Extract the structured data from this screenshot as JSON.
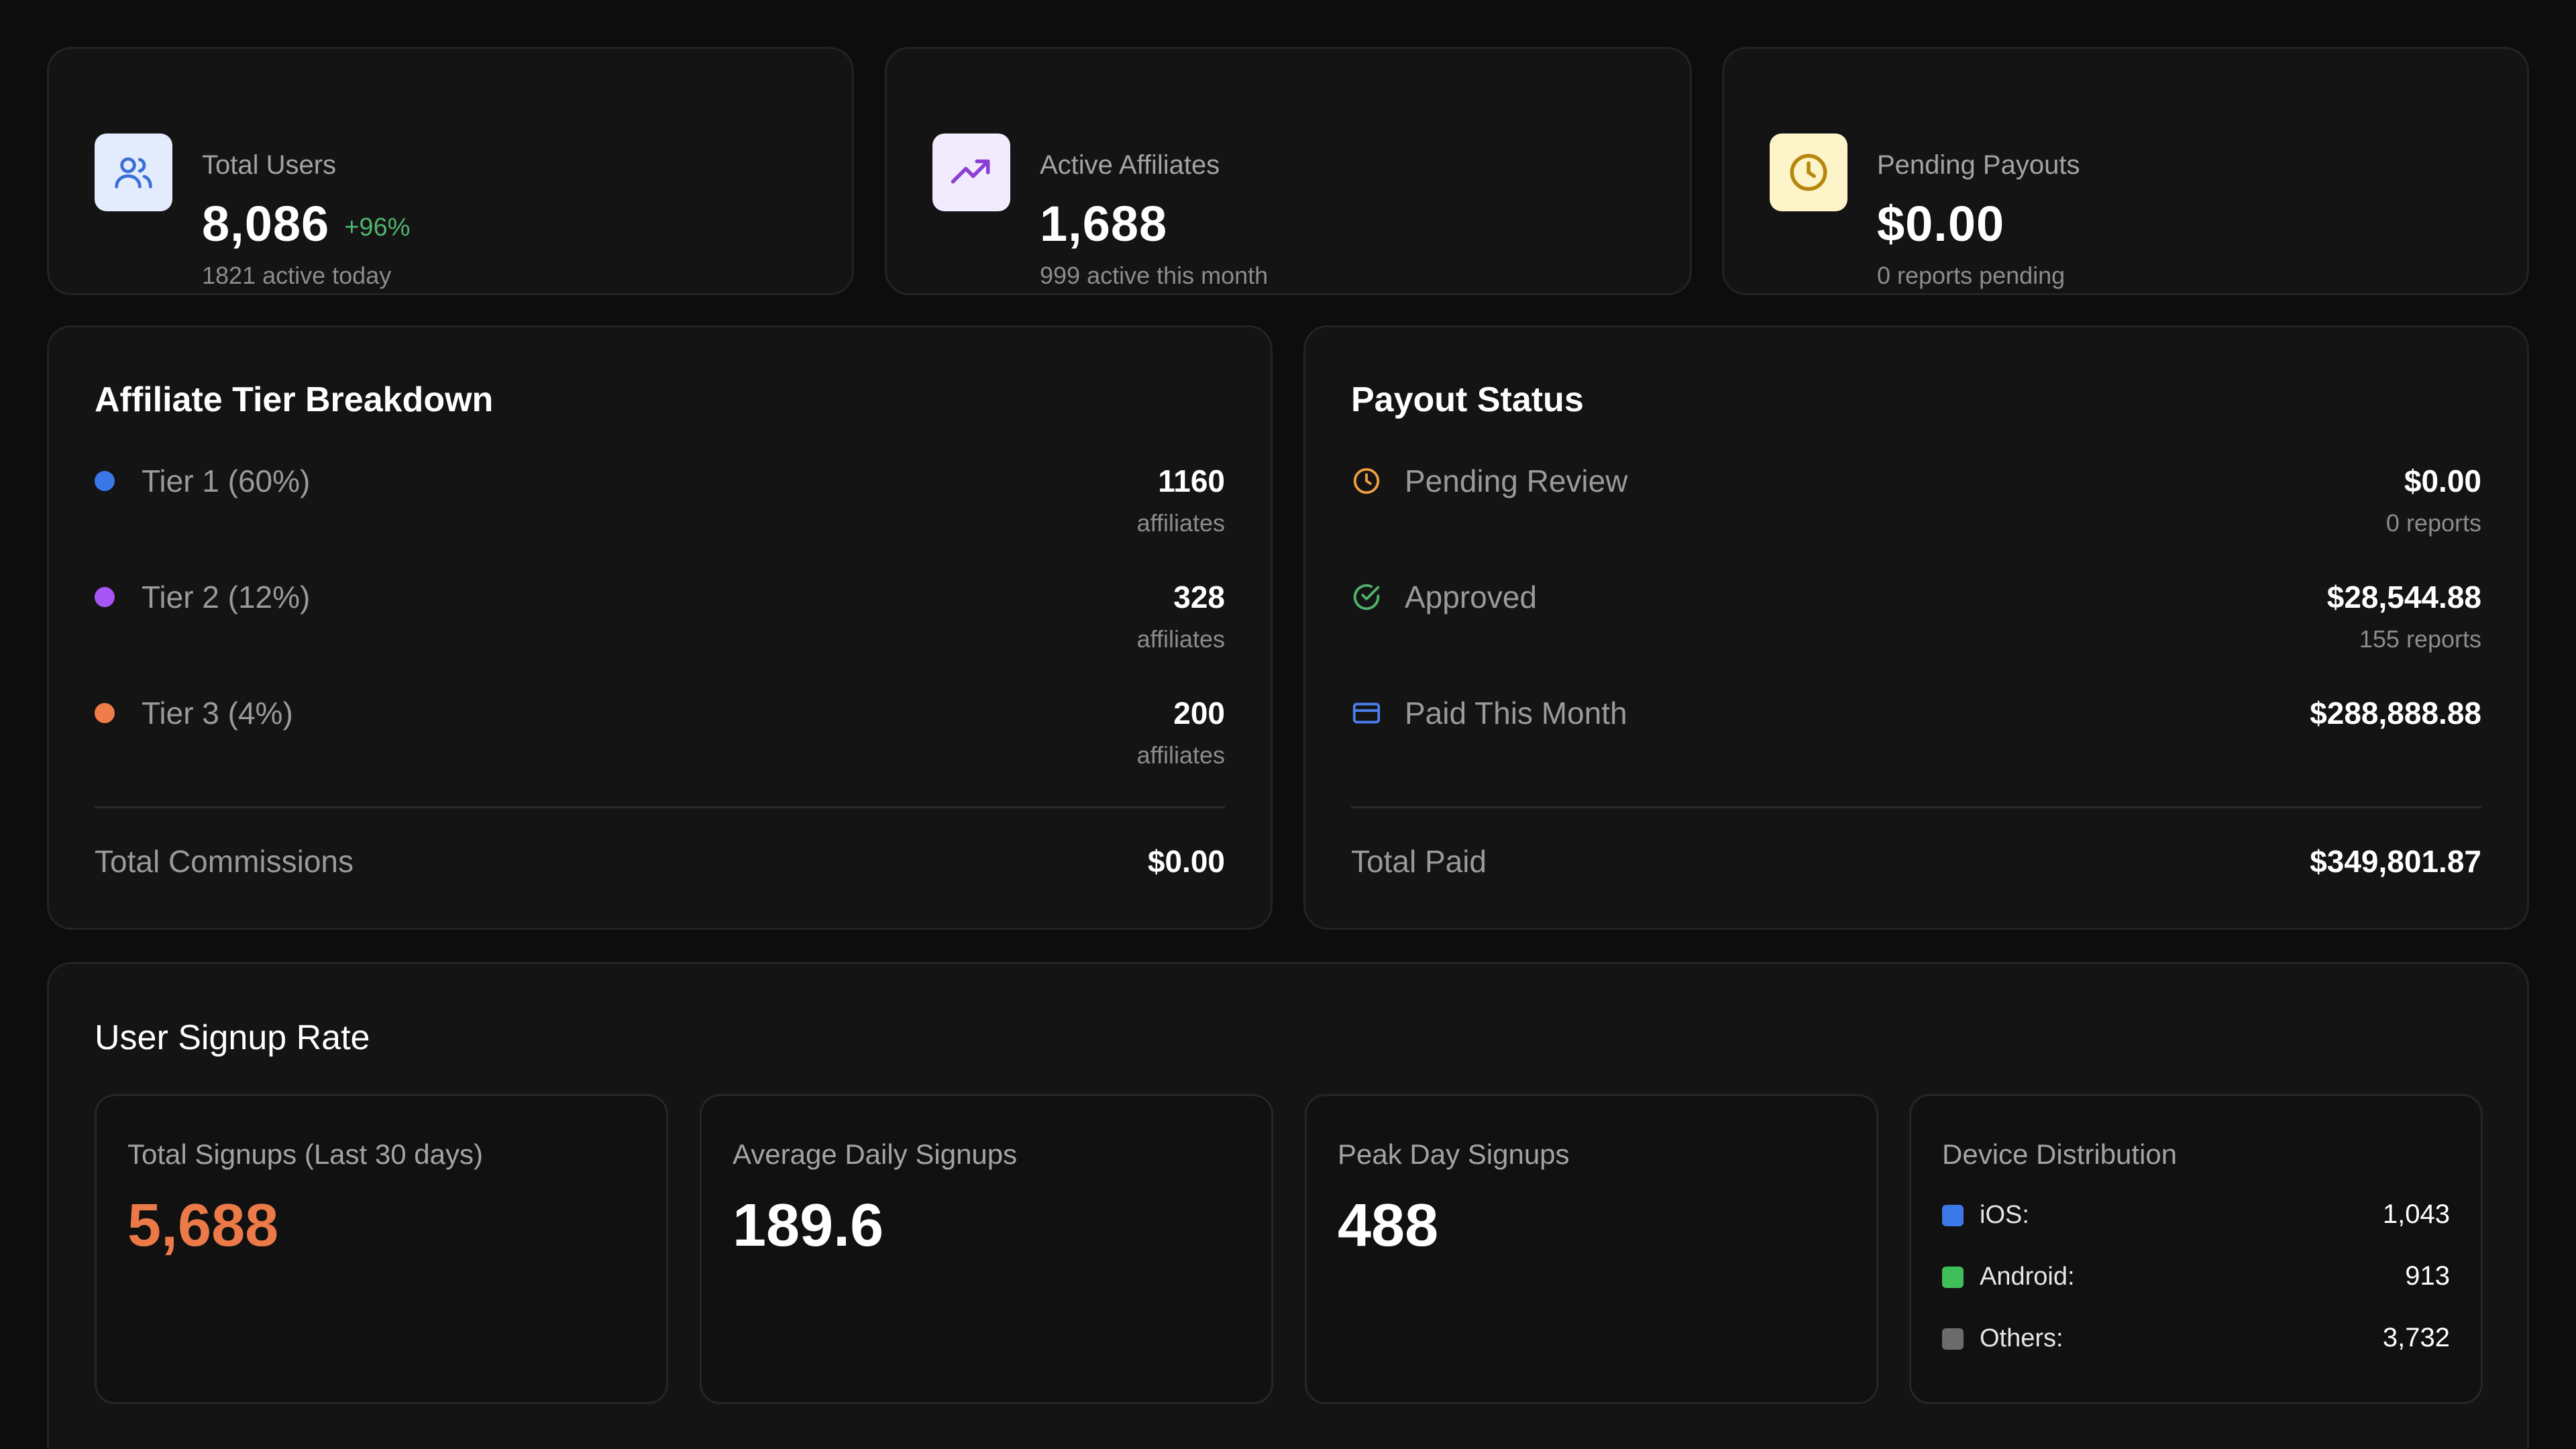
{
  "stats": [
    {
      "label": "Total Users",
      "value": "8,086",
      "delta": "+96%",
      "sub": "1821 active today",
      "icon": "users-icon",
      "icon_bg": "#e3ecfd",
      "icon_color": "#3a6fd8"
    },
    {
      "label": "Active Affiliates",
      "value": "1,688",
      "sub": "999 active this month",
      "icon": "trending-up-icon",
      "icon_bg": "#f2eafd",
      "icon_color": "#8a3fd6"
    },
    {
      "label": "Pending Payouts",
      "value": "$0.00",
      "sub": "0 reports pending",
      "icon": "clock-icon",
      "icon_bg": "#fdf4c9",
      "icon_color": "#b8860b"
    }
  ],
  "tiers": {
    "title": "Affiliate Tier Breakdown",
    "rows": [
      {
        "label": "Tier 1 (60%)",
        "value": "1160",
        "sub": "affiliates",
        "color": "#3b78e7"
      },
      {
        "label": "Tier 2 (12%)",
        "value": "328",
        "sub": "affiliates",
        "color": "#a855f7"
      },
      {
        "label": "Tier 3 (4%)",
        "value": "200",
        "sub": "affiliates",
        "color": "#f07c4a"
      }
    ],
    "total_label": "Total Commissions",
    "total_value": "$0.00"
  },
  "payout": {
    "title": "Payout Status",
    "rows": [
      {
        "label": "Pending Review",
        "value": "$0.00",
        "sub": "0 reports",
        "icon": "clock-icon",
        "color": "#f0a040"
      },
      {
        "label": "Approved",
        "value": "$28,544.88",
        "sub": "155 reports",
        "icon": "check-circle-icon",
        "color": "#4fb36d"
      },
      {
        "label": "Paid This Month",
        "value": "$288,888.88",
        "sub": "",
        "icon": "credit-card-icon",
        "color": "#4a7ff0"
      }
    ],
    "total_label": "Total Paid",
    "total_value": "$349,801.87"
  },
  "signup": {
    "title": "User Signup Rate",
    "cards": [
      {
        "label": "Total Signups (Last 30 days)",
        "value": "5,688"
      },
      {
        "label": "Average Daily Signups",
        "value": "189.6"
      },
      {
        "label": "Peak Day Signups",
        "value": "488"
      }
    ],
    "devices": {
      "label": "Device Distribution",
      "rows": [
        {
          "label": "iOS:",
          "value": "1,043",
          "color": "#3b78e7"
        },
        {
          "label": "Android:",
          "value": "913",
          "color": "#3fbf5a"
        },
        {
          "label": "Others:",
          "value": "3,732",
          "color": "#6b6b6b"
        }
      ]
    }
  }
}
